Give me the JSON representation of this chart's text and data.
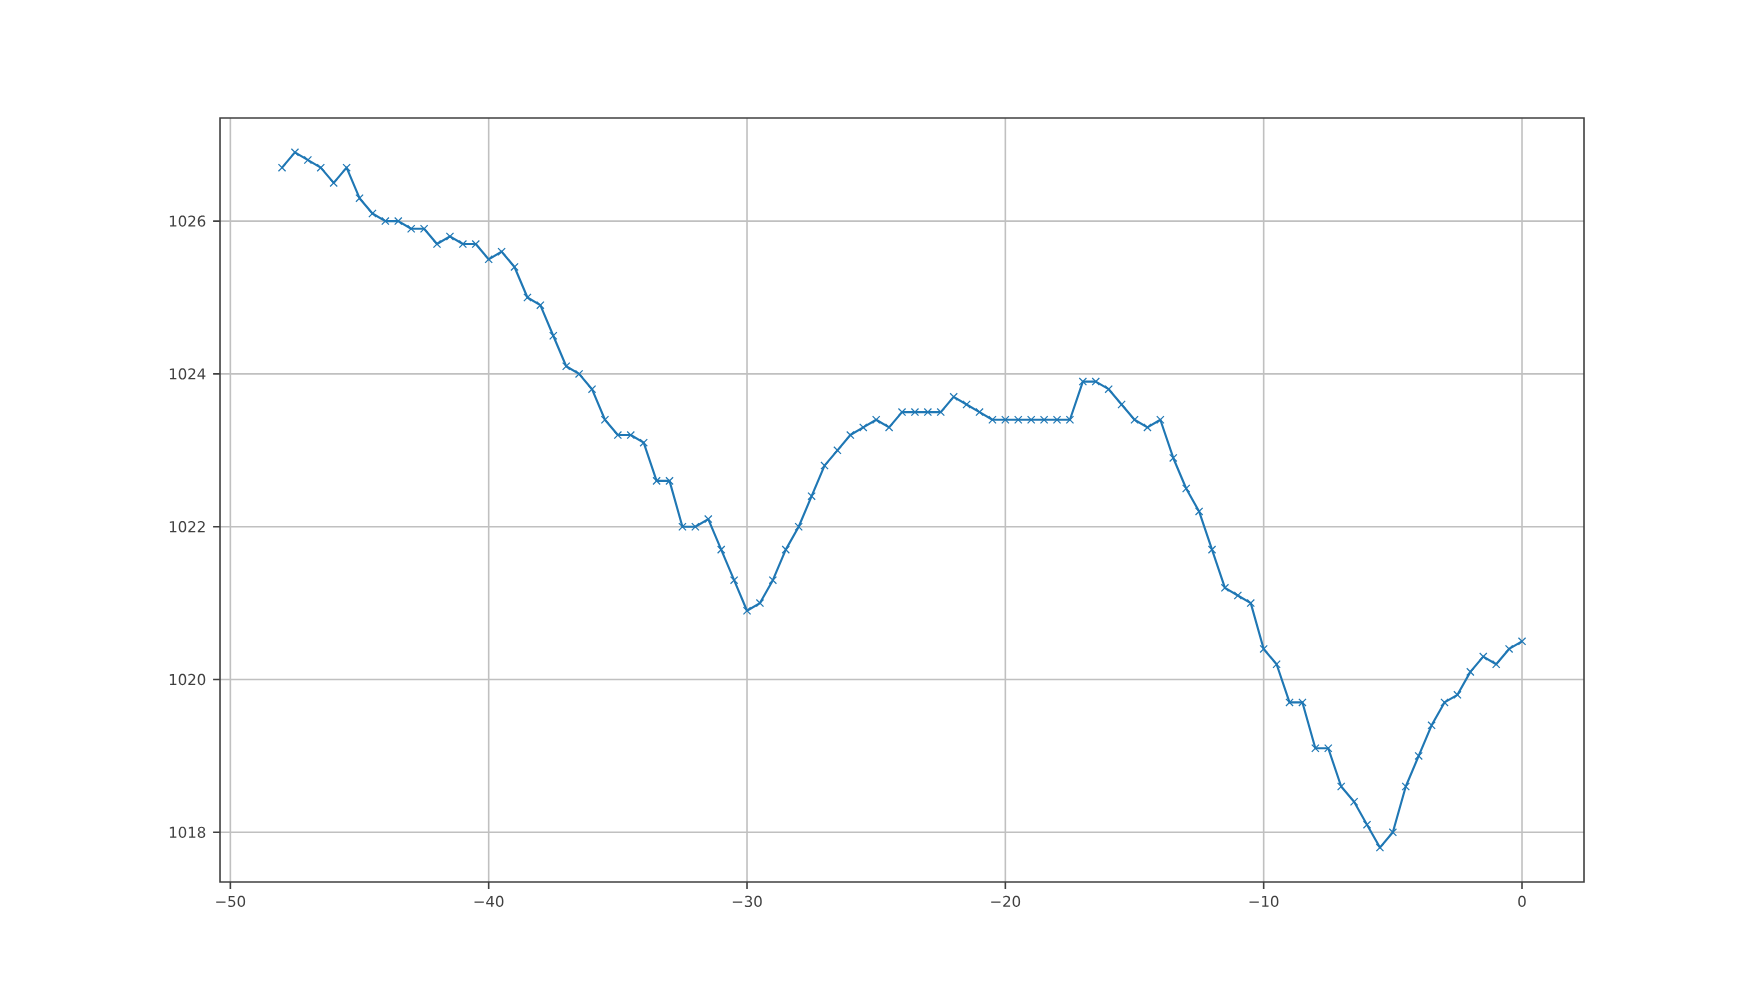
{
  "chart_data": {
    "type": "line",
    "x": [
      -48,
      -47.5,
      -47,
      -46.5,
      -46,
      -45.5,
      -45,
      -44.5,
      -44,
      -43.5,
      -43,
      -42.5,
      -42,
      -41.5,
      -41,
      -40.5,
      -40,
      -39.5,
      -39,
      -38.5,
      -38,
      -37.5,
      -37,
      -36.5,
      -36,
      -35.5,
      -35,
      -34.5,
      -34,
      -33.5,
      -33,
      -32.5,
      -32,
      -31.5,
      -31,
      -30.5,
      -30,
      -29.5,
      -29,
      -28.5,
      -28,
      -27.5,
      -27,
      -26.5,
      -26,
      -25.5,
      -25,
      -24.5,
      -24,
      -23.5,
      -23,
      -22.5,
      -22,
      -21.5,
      -21,
      -20.5,
      -20,
      -19.5,
      -19,
      -18.5,
      -18,
      -17.5,
      -17,
      -16.5,
      -16,
      -15.5,
      -15,
      -14.5,
      -14,
      -13.5,
      -13,
      -12.5,
      -12,
      -11.5,
      -11,
      -10.5,
      -10,
      -9.5,
      -9,
      -8.5,
      -8,
      -7.5,
      -7,
      -6.5,
      -6,
      -5.5,
      -5,
      -4.5,
      -4,
      -3.5,
      -3,
      -2.5,
      -2,
      -1.5,
      -1,
      -0.5,
      0
    ],
    "values": [
      1026.7,
      1026.9,
      1026.8,
      1026.7,
      1026.5,
      1026.7,
      1026.3,
      1026.1,
      1026.0,
      1026.0,
      1025.9,
      1025.9,
      1025.7,
      1025.8,
      1025.7,
      1025.7,
      1025.5,
      1025.6,
      1025.4,
      1025.0,
      1024.9,
      1024.5,
      1024.1,
      1024.0,
      1023.8,
      1023.4,
      1023.2,
      1023.2,
      1023.1,
      1022.6,
      1022.6,
      1022.0,
      1022.0,
      1022.1,
      1021.7,
      1021.3,
      1020.9,
      1021.0,
      1021.3,
      1021.7,
      1022.0,
      1022.4,
      1022.8,
      1023.0,
      1023.2,
      1023.3,
      1023.4,
      1023.3,
      1023.5,
      1023.5,
      1023.5,
      1023.5,
      1023.7,
      1023.6,
      1023.5,
      1023.4,
      1023.4,
      1023.4,
      1023.4,
      1023.4,
      1023.4,
      1023.4,
      1023.9,
      1023.9,
      1023.8,
      1023.6,
      1023.4,
      1023.3,
      1023.4,
      1022.9,
      1022.5,
      1022.2,
      1021.7,
      1021.2,
      1021.1,
      1021.0,
      1020.4,
      1020.2,
      1019.7,
      1019.7,
      1019.1,
      1019.1,
      1018.6,
      1018.4,
      1018.1,
      1017.8,
      1018.0,
      1018.6,
      1019.0,
      1019.4,
      1019.7,
      1019.8,
      1020.1,
      1020.3,
      1020.2,
      1020.4,
      1020.5
    ],
    "color": "#1f77b4",
    "marker": "cross",
    "line_style": "solid",
    "grid": true,
    "xlim": [
      -50.4,
      2.4
    ],
    "ylim": [
      1017.35,
      1027.35
    ],
    "xticks": [
      {
        "value": -50,
        "label": "−50"
      },
      {
        "value": -40,
        "label": "−40"
      },
      {
        "value": -30,
        "label": "−30"
      },
      {
        "value": -20,
        "label": "−20"
      },
      {
        "value": -10,
        "label": "−10"
      },
      0
    ],
    "yticks": [
      1018,
      1020,
      1022,
      1024,
      1026
    ]
  }
}
